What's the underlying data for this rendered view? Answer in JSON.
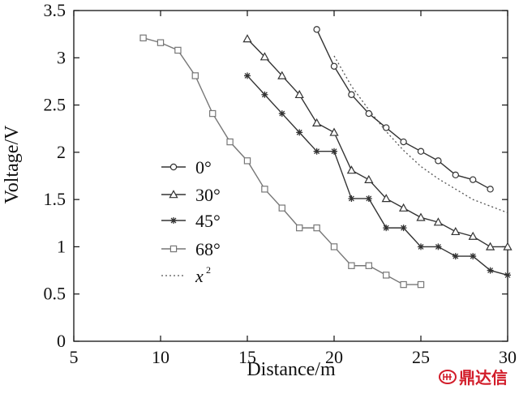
{
  "chart_data": {
    "type": "line",
    "title": "",
    "xlabel": "Distance/m",
    "ylabel": "Voltage/V",
    "xlim": [
      5,
      30
    ],
    "ylim": [
      0,
      3.5
    ],
    "xticks": [
      5,
      10,
      15,
      20,
      25,
      30
    ],
    "yticks": [
      0,
      0.5,
      1,
      1.5,
      2,
      2.5,
      3,
      3.5
    ],
    "xtick_labels": [
      "5",
      "10",
      "15",
      "20",
      "25",
      "30"
    ],
    "ytick_labels": [
      "0",
      "0.5",
      "1",
      "1.5",
      "2",
      "2.5",
      "3",
      "3.5"
    ],
    "grid": false,
    "legend_position": "center-left",
    "series": [
      {
        "name": "0°",
        "marker": "circle",
        "color": "#333333",
        "x": [
          19,
          20,
          21,
          22,
          23,
          24,
          25,
          26,
          27,
          28,
          29
        ],
        "y": [
          3.3,
          2.91,
          2.61,
          2.41,
          2.26,
          2.11,
          2.01,
          1.91,
          1.76,
          1.71,
          1.61
        ]
      },
      {
        "name": "30°",
        "marker": "triangle",
        "color": "#333333",
        "x": [
          15,
          16,
          17,
          18,
          19,
          20,
          21,
          22,
          23,
          24,
          25,
          26,
          27,
          28,
          29,
          30
        ],
        "y": [
          3.2,
          3.01,
          2.81,
          2.61,
          2.31,
          2.21,
          1.81,
          1.71,
          1.51,
          1.41,
          1.31,
          1.26,
          1.16,
          1.11,
          1.0,
          1.0
        ]
      },
      {
        "name": "45°",
        "marker": "star",
        "color": "#333333",
        "x": [
          15,
          16,
          17,
          18,
          19,
          20,
          21,
          22,
          23,
          24,
          25,
          26,
          27,
          28,
          29,
          30
        ],
        "y": [
          2.81,
          2.61,
          2.41,
          2.21,
          2.01,
          2.01,
          1.51,
          1.51,
          1.2,
          1.2,
          1.0,
          1.0,
          0.9,
          0.9,
          0.75,
          0.7
        ]
      },
      {
        "name": "68°",
        "marker": "square",
        "color": "#777777",
        "x": [
          9,
          10,
          11,
          12,
          13,
          14,
          15,
          16,
          17,
          18,
          19,
          20,
          21,
          22,
          23,
          24,
          25
        ],
        "y": [
          3.21,
          3.16,
          3.08,
          2.81,
          2.41,
          2.11,
          1.91,
          1.61,
          1.41,
          1.2,
          1.2,
          1.0,
          0.8,
          0.8,
          0.7,
          0.6,
          0.6
        ]
      }
    ],
    "reference_curve": {
      "label_base": "x",
      "label_exponent": "2",
      "style": "dotted",
      "color": "#555555",
      "x": [
        20,
        21,
        22,
        23,
        24,
        25,
        26,
        27,
        28,
        29,
        30
      ],
      "y": [
        3.02,
        2.7,
        2.45,
        2.22,
        2.02,
        1.85,
        1.72,
        1.61,
        1.5,
        1.43,
        1.36
      ]
    }
  },
  "watermark": {
    "text": "鼎达信",
    "color": "#d21d2a"
  }
}
